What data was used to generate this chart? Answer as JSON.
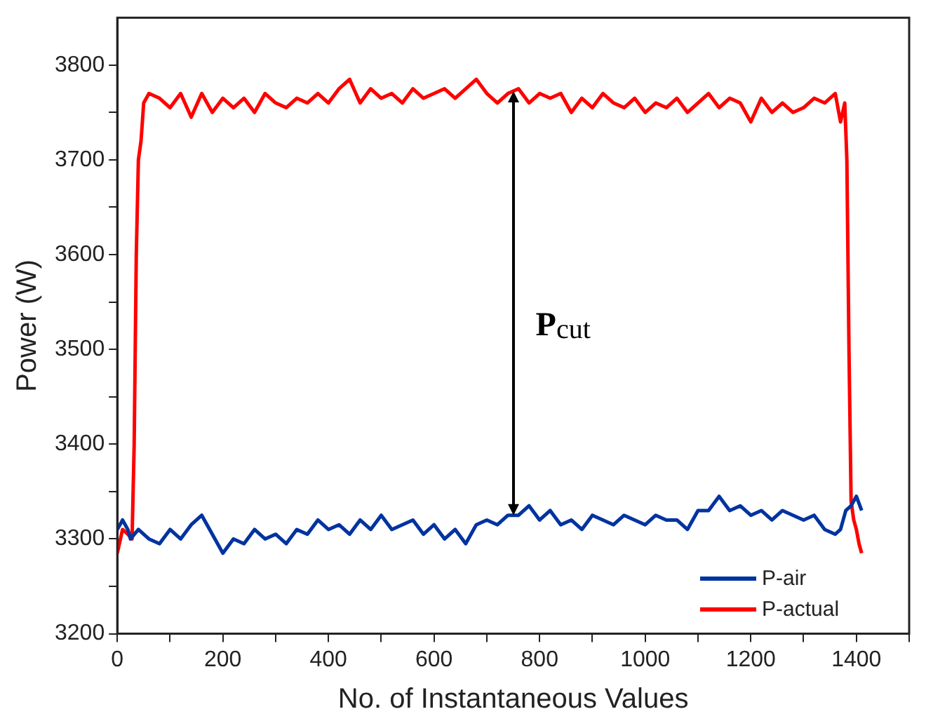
{
  "chart_data": {
    "type": "line",
    "xlabel": "No. of Instantaneous Values",
    "ylabel": "Power (W)",
    "xlim": [
      0,
      1500
    ],
    "ylim": [
      3200,
      3850
    ],
    "xticks": [
      0,
      {
        "value": 100,
        "label": null
      },
      200,
      {
        "value": 300,
        "label": null
      },
      400,
      {
        "value": 500,
        "label": null
      },
      600,
      {
        "value": 700,
        "label": null
      },
      800,
      {
        "value": 900,
        "label": null
      },
      1000,
      {
        "value": 1100,
        "label": null
      },
      1200,
      {
        "value": 1300,
        "label": null
      },
      1400,
      {
        "value": 1500,
        "label": null
      }
    ],
    "yticks": [
      3200,
      {
        "value": 3250,
        "label": null
      },
      3300,
      {
        "value": 3350,
        "label": null
      },
      3400,
      {
        "value": 3450,
        "label": null
      },
      3500,
      {
        "value": 3550,
        "label": null
      },
      3600,
      {
        "value": 3650,
        "label": null
      },
      3700,
      {
        "value": 3750,
        "label": null
      },
      3800
    ],
    "grid": false,
    "legend": "bottom right",
    "marker": "none",
    "line_style": "solid",
    "annotations": [
      "P$_{cut}$"
    ],
    "series": [
      {
        "name": "P-air",
        "color": "#0033a0",
        "x": [
          0,
          10,
          20,
          25,
          40,
          60,
          80,
          100,
          120,
          140,
          160,
          180,
          200,
          220,
          240,
          260,
          280,
          300,
          320,
          340,
          360,
          380,
          400,
          420,
          440,
          460,
          480,
          500,
          520,
          540,
          560,
          580,
          600,
          620,
          640,
          660,
          680,
          700,
          720,
          740,
          760,
          780,
          800,
          820,
          840,
          860,
          880,
          900,
          920,
          940,
          960,
          980,
          1000,
          1020,
          1040,
          1060,
          1080,
          1100,
          1120,
          1140,
          1160,
          1180,
          1200,
          1220,
          1240,
          1260,
          1280,
          1300,
          1320,
          1340,
          1360,
          1370,
          1380,
          1390,
          1400,
          1410
        ],
        "values": [
          3310,
          3320,
          3310,
          3300,
          3310,
          3300,
          3295,
          3310,
          3300,
          3315,
          3325,
          3305,
          3285,
          3300,
          3295,
          3310,
          3300,
          3305,
          3295,
          3310,
          3305,
          3320,
          3310,
          3315,
          3305,
          3320,
          3310,
          3325,
          3310,
          3315,
          3320,
          3305,
          3315,
          3300,
          3310,
          3295,
          3315,
          3320,
          3315,
          3325,
          3325,
          3335,
          3320,
          3330,
          3315,
          3320,
          3310,
          3325,
          3320,
          3315,
          3325,
          3320,
          3315,
          3325,
          3320,
          3320,
          3310,
          3330,
          3330,
          3345,
          3330,
          3335,
          3325,
          3330,
          3320,
          3330,
          3325,
          3320,
          3325,
          3310,
          3305,
          3310,
          3330,
          3335,
          3345,
          3330
        ]
      },
      {
        "name": "P-actual",
        "color": "#ff0000",
        "x": [
          0,
          10,
          20,
          28,
          32,
          36,
          40,
          45,
          50,
          60,
          80,
          100,
          120,
          140,
          160,
          180,
          200,
          220,
          240,
          260,
          280,
          300,
          320,
          340,
          360,
          380,
          400,
          420,
          440,
          460,
          480,
          500,
          520,
          540,
          560,
          580,
          600,
          620,
          640,
          660,
          680,
          700,
          720,
          740,
          760,
          780,
          800,
          820,
          840,
          860,
          880,
          900,
          920,
          940,
          960,
          980,
          1000,
          1020,
          1040,
          1060,
          1080,
          1100,
          1120,
          1140,
          1160,
          1180,
          1200,
          1220,
          1240,
          1260,
          1280,
          1300,
          1320,
          1340,
          1360,
          1370,
          1378,
          1382,
          1386,
          1390,
          1395,
          1400,
          1405,
          1410
        ],
        "values": [
          3285,
          3310,
          3305,
          3300,
          3400,
          3600,
          3700,
          3720,
          3760,
          3770,
          3765,
          3755,
          3770,
          3745,
          3770,
          3750,
          3765,
          3755,
          3765,
          3750,
          3770,
          3760,
          3755,
          3765,
          3760,
          3770,
          3760,
          3775,
          3785,
          3760,
          3775,
          3765,
          3770,
          3760,
          3775,
          3765,
          3770,
          3775,
          3765,
          3775,
          3785,
          3770,
          3760,
          3770,
          3775,
          3760,
          3770,
          3765,
          3770,
          3750,
          3765,
          3755,
          3770,
          3760,
          3755,
          3765,
          3750,
          3760,
          3755,
          3765,
          3750,
          3760,
          3770,
          3755,
          3765,
          3760,
          3740,
          3765,
          3750,
          3760,
          3750,
          3755,
          3765,
          3760,
          3770,
          3740,
          3760,
          3700,
          3500,
          3340,
          3320,
          3310,
          3295,
          3285
        ]
      }
    ]
  }
}
